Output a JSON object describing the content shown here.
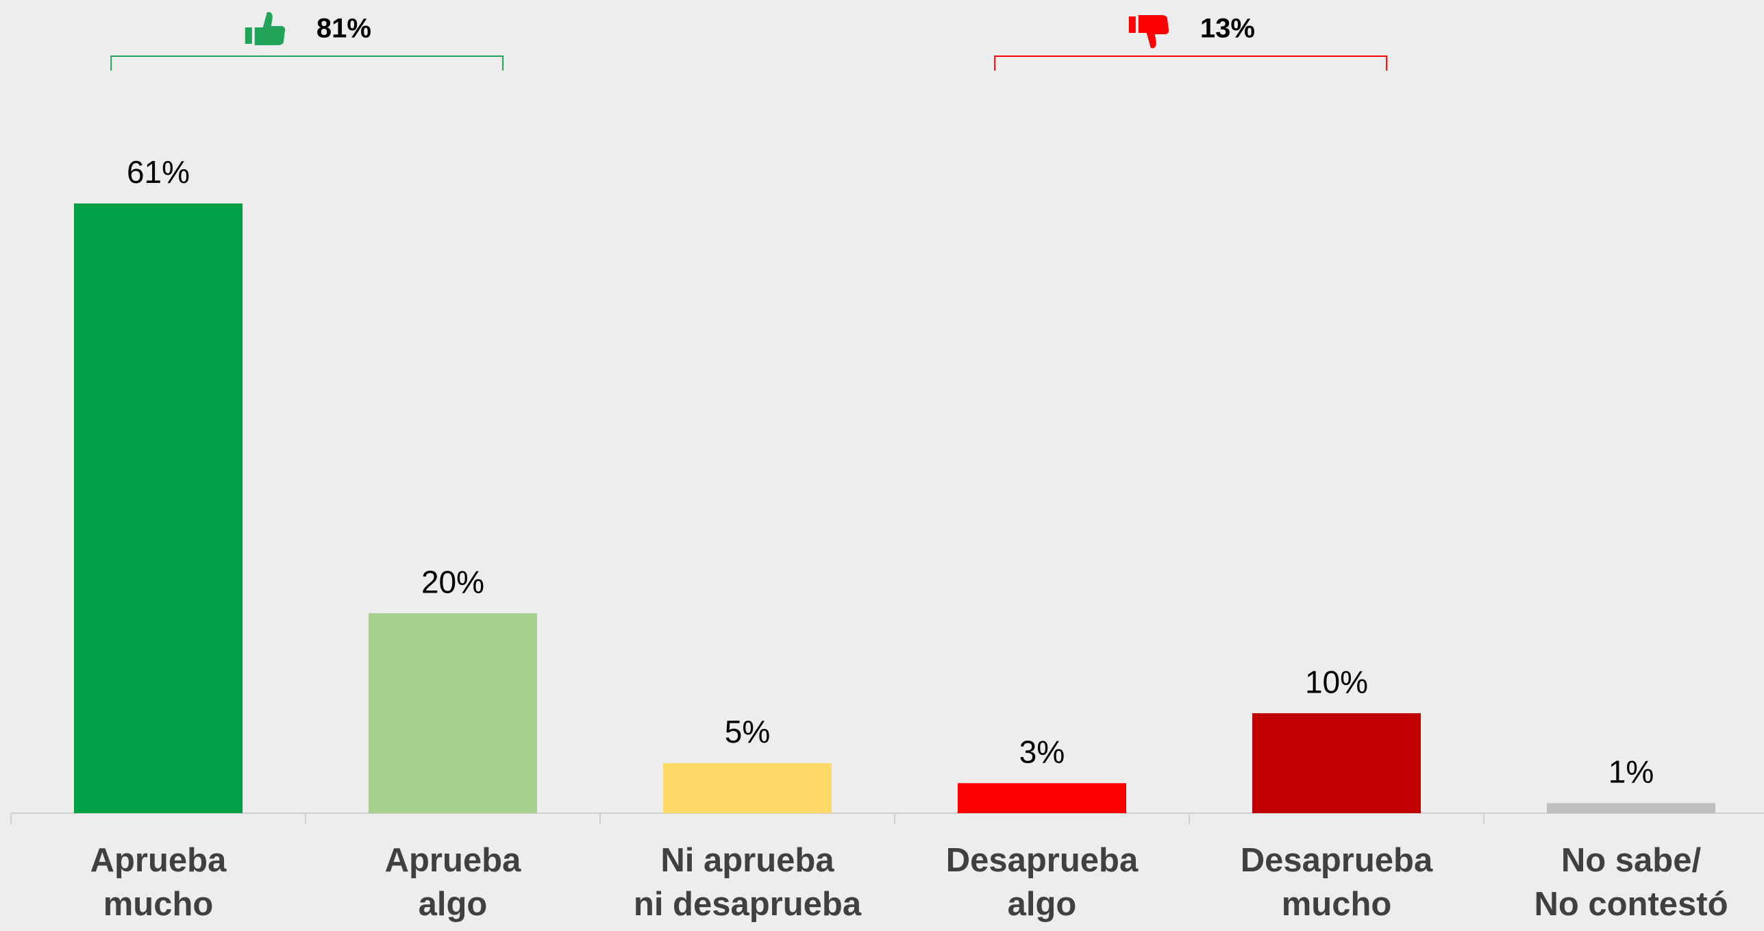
{
  "chart_data": {
    "type": "bar",
    "categories": [
      [
        "Aprueba",
        "mucho"
      ],
      [
        "Aprueba",
        "algo"
      ],
      [
        "Ni aprueba",
        "ni desaprueba"
      ],
      [
        "Desaprueba",
        "algo"
      ],
      [
        "Desaprueba",
        "mucho"
      ],
      [
        "No sabe/",
        "No contestó"
      ]
    ],
    "values": [
      61,
      20,
      5,
      3,
      10,
      1
    ],
    "value_labels": [
      "61%",
      "20%",
      "5%",
      "3%",
      "10%",
      "1%"
    ],
    "colors": [
      "#00a046",
      "#a9d18e",
      "#ffd966",
      "#ff0000",
      "#c00000",
      "#bfbfbf"
    ],
    "groups": [
      {
        "value": 81,
        "label": "81%",
        "color": "#21a35a"
      },
      {
        "value": 13,
        "label": "13%",
        "color": "#ff0000"
      }
    ]
  }
}
